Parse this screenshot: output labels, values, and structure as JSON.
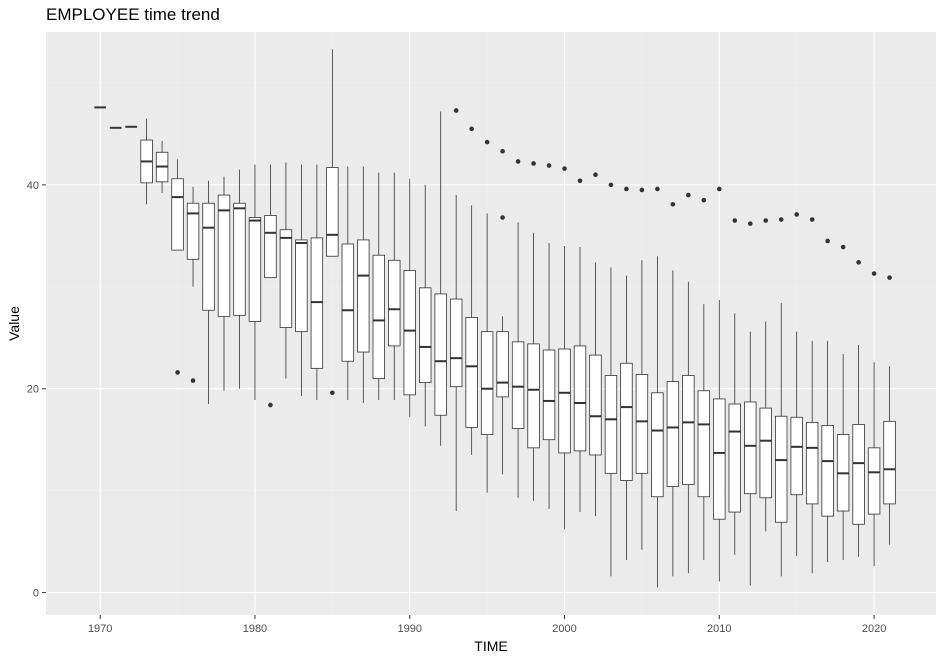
{
  "chart_data": {
    "type": "boxplot",
    "title": "EMPLOYEE time trend",
    "xlabel": "TIME",
    "ylabel": "Value",
    "xlim": [
      1966.5,
      2024.0
    ],
    "ylim": [
      -2.2,
      55.0
    ],
    "x_ticks": [
      1970,
      1980,
      1990,
      2000,
      2010,
      2020
    ],
    "y_ticks": [
      0,
      20,
      40
    ],
    "grid": true,
    "colors": {
      "panel": "#ebebeb",
      "grid_major": "#ffffff",
      "grid_minor": "#f2f2f2",
      "box_fill": "#ffffff",
      "box_line": "#333333"
    },
    "boxes": [
      {
        "x": 1970,
        "min": 47.6,
        "q1": 47.6,
        "median": 47.6,
        "q3": 47.6,
        "max": 47.6,
        "outliers": []
      },
      {
        "x": 1971,
        "min": 45.6,
        "q1": 45.6,
        "median": 45.6,
        "q3": 45.6,
        "max": 45.6,
        "outliers": []
      },
      {
        "x": 1972,
        "min": 45.7,
        "q1": 45.7,
        "median": 45.7,
        "q3": 45.7,
        "max": 45.7,
        "outliers": []
      },
      {
        "x": 1973,
        "min": 38.1,
        "q1": 40.2,
        "median": 42.3,
        "q3": 44.4,
        "max": 46.5,
        "outliers": []
      },
      {
        "x": 1974,
        "min": 39.2,
        "q1": 40.3,
        "median": 41.8,
        "q3": 43.2,
        "max": 44.3,
        "outliers": []
      },
      {
        "x": 1975,
        "min": 33.6,
        "q1": 33.6,
        "median": 38.8,
        "q3": 40.6,
        "max": 42.5,
        "outliers": [
          21.6
        ]
      },
      {
        "x": 1976,
        "min": 30.0,
        "q1": 32.7,
        "median": 37.2,
        "q3": 38.2,
        "max": 39.8,
        "outliers": [
          20.8
        ]
      },
      {
        "x": 1977,
        "min": 18.5,
        "q1": 27.7,
        "median": 35.8,
        "q3": 38.2,
        "max": 40.4,
        "outliers": []
      },
      {
        "x": 1978,
        "min": 19.8,
        "q1": 27.1,
        "median": 37.5,
        "q3": 39.0,
        "max": 40.8,
        "outliers": []
      },
      {
        "x": 1979,
        "min": 20.0,
        "q1": 27.2,
        "median": 37.7,
        "q3": 38.2,
        "max": 41.5,
        "outliers": []
      },
      {
        "x": 1980,
        "min": 18.9,
        "q1": 26.6,
        "median": 36.5,
        "q3": 36.8,
        "max": 42.0,
        "outliers": []
      },
      {
        "x": 1981,
        "min": 30.9,
        "q1": 30.9,
        "median": 35.3,
        "q3": 37.0,
        "max": 42.0,
        "outliers": [
          18.4
        ]
      },
      {
        "x": 1982,
        "min": 21.0,
        "q1": 26.0,
        "median": 34.8,
        "q3": 35.6,
        "max": 42.2,
        "outliers": []
      },
      {
        "x": 1983,
        "min": 19.3,
        "q1": 25.6,
        "median": 34.3,
        "q3": 34.6,
        "max": 42.0,
        "outliers": []
      },
      {
        "x": 1984,
        "min": 18.9,
        "q1": 22.0,
        "median": 28.5,
        "q3": 34.8,
        "max": 42.0,
        "outliers": []
      },
      {
        "x": 1985,
        "min": 33.0,
        "q1": 33.0,
        "median": 35.1,
        "q3": 41.7,
        "max": 53.3,
        "outliers": [
          19.6
        ]
      },
      {
        "x": 1986,
        "min": 18.9,
        "q1": 22.7,
        "median": 27.7,
        "q3": 34.2,
        "max": 41.8,
        "outliers": []
      },
      {
        "x": 1987,
        "min": 18.6,
        "q1": 23.6,
        "median": 31.1,
        "q3": 34.6,
        "max": 41.8,
        "outliers": []
      },
      {
        "x": 1988,
        "min": 18.9,
        "q1": 21.0,
        "median": 26.7,
        "q3": 33.1,
        "max": 41.2,
        "outliers": []
      },
      {
        "x": 1989,
        "min": 18.9,
        "q1": 24.2,
        "median": 27.8,
        "q3": 32.6,
        "max": 41.2,
        "outliers": []
      },
      {
        "x": 1990,
        "min": 17.2,
        "q1": 19.4,
        "median": 25.7,
        "q3": 31.6,
        "max": 40.6,
        "outliers": []
      },
      {
        "x": 1991,
        "min": 16.3,
        "q1": 20.6,
        "median": 24.1,
        "q3": 29.9,
        "max": 40.0,
        "outliers": []
      },
      {
        "x": 1992,
        "min": 14.4,
        "q1": 17.4,
        "median": 22.7,
        "q3": 29.3,
        "max": 47.2,
        "outliers": []
      },
      {
        "x": 1993,
        "min": 8.0,
        "q1": 20.2,
        "median": 23.0,
        "q3": 28.8,
        "max": 39.0,
        "outliers": [
          47.3
        ]
      },
      {
        "x": 1994,
        "min": 13.5,
        "q1": 16.2,
        "median": 22.2,
        "q3": 27.0,
        "max": 38.0,
        "outliers": [
          45.5
        ]
      },
      {
        "x": 1995,
        "min": 9.8,
        "q1": 15.5,
        "median": 20.0,
        "q3": 25.6,
        "max": 37.2,
        "outliers": [
          44.2
        ]
      },
      {
        "x": 1996,
        "min": 11.6,
        "q1": 19.2,
        "median": 20.6,
        "q3": 25.6,
        "max": 27.1,
        "outliers": [
          43.3,
          36.8
        ]
      },
      {
        "x": 1997,
        "min": 9.3,
        "q1": 16.1,
        "median": 20.2,
        "q3": 24.6,
        "max": 36.3,
        "outliers": [
          42.3
        ]
      },
      {
        "x": 1998,
        "min": 9.0,
        "q1": 14.2,
        "median": 19.9,
        "q3": 24.4,
        "max": 35.3,
        "outliers": [
          42.1
        ]
      },
      {
        "x": 1999,
        "min": 8.2,
        "q1": 15.0,
        "median": 18.8,
        "q3": 23.8,
        "max": 34.3,
        "outliers": [
          41.9
        ]
      },
      {
        "x": 2000,
        "min": 6.2,
        "q1": 13.7,
        "median": 19.6,
        "q3": 23.9,
        "max": 34.0,
        "outliers": [
          41.6
        ]
      },
      {
        "x": 2001,
        "min": 7.9,
        "q1": 13.9,
        "median": 18.6,
        "q3": 24.2,
        "max": 33.9,
        "outliers": [
          40.4
        ]
      },
      {
        "x": 2002,
        "min": 7.5,
        "q1": 13.5,
        "median": 17.3,
        "q3": 23.3,
        "max": 32.4,
        "outliers": [
          41.0
        ]
      },
      {
        "x": 2003,
        "min": 1.6,
        "q1": 11.7,
        "median": 17.0,
        "q3": 21.3,
        "max": 31.9,
        "outliers": [
          40.0
        ]
      },
      {
        "x": 2004,
        "min": 3.2,
        "q1": 11.0,
        "median": 18.2,
        "q3": 22.5,
        "max": 31.1,
        "outliers": [
          39.6
        ]
      },
      {
        "x": 2005,
        "min": 4.2,
        "q1": 11.7,
        "median": 16.8,
        "q3": 21.4,
        "max": 32.6,
        "outliers": [
          39.5
        ]
      },
      {
        "x": 2006,
        "min": 0.5,
        "q1": 9.4,
        "median": 15.9,
        "q3": 19.6,
        "max": 33.0,
        "outliers": [
          39.6
        ]
      },
      {
        "x": 2007,
        "min": 1.6,
        "q1": 10.4,
        "median": 16.2,
        "q3": 20.7,
        "max": 31.6,
        "outliers": [
          38.1
        ]
      },
      {
        "x": 2008,
        "min": 1.9,
        "q1": 10.6,
        "median": 16.7,
        "q3": 21.3,
        "max": 30.5,
        "outliers": [
          39.0
        ]
      },
      {
        "x": 2009,
        "min": 3.2,
        "q1": 9.4,
        "median": 16.5,
        "q3": 19.8,
        "max": 28.3,
        "outliers": [
          38.5
        ]
      },
      {
        "x": 2010,
        "min": 1.1,
        "q1": 7.2,
        "median": 13.7,
        "q3": 19.0,
        "max": 28.7,
        "outliers": [
          39.6
        ]
      },
      {
        "x": 2011,
        "min": 3.7,
        "q1": 7.9,
        "median": 15.8,
        "q3": 18.5,
        "max": 27.4,
        "outliers": [
          36.5
        ]
      },
      {
        "x": 2012,
        "min": 0.7,
        "q1": 9.7,
        "median": 14.4,
        "q3": 18.7,
        "max": 25.6,
        "outliers": [
          36.2
        ]
      },
      {
        "x": 2013,
        "min": 6.0,
        "q1": 9.3,
        "median": 14.9,
        "q3": 18.1,
        "max": 26.6,
        "outliers": [
          36.5
        ]
      },
      {
        "x": 2014,
        "min": 1.6,
        "q1": 6.9,
        "median": 13.0,
        "q3": 17.3,
        "max": 28.4,
        "outliers": [
          36.6
        ]
      },
      {
        "x": 2015,
        "min": 3.6,
        "q1": 9.6,
        "median": 14.3,
        "q3": 17.2,
        "max": 25.6,
        "outliers": [
          37.1
        ]
      },
      {
        "x": 2016,
        "min": 1.9,
        "q1": 8.7,
        "median": 14.2,
        "q3": 16.7,
        "max": 24.7,
        "outliers": [
          36.6
        ]
      },
      {
        "x": 2017,
        "min": 3.0,
        "q1": 7.5,
        "median": 12.9,
        "q3": 16.4,
        "max": 24.7,
        "outliers": [
          34.5
        ]
      },
      {
        "x": 2018,
        "min": 3.2,
        "q1": 8.0,
        "median": 11.7,
        "q3": 15.5,
        "max": 23.4,
        "outliers": [
          33.9
        ]
      },
      {
        "x": 2019,
        "min": 3.5,
        "q1": 6.7,
        "median": 12.7,
        "q3": 16.5,
        "max": 24.3,
        "outliers": [
          32.4
        ]
      },
      {
        "x": 2020,
        "min": 2.6,
        "q1": 7.7,
        "median": 11.8,
        "q3": 14.2,
        "max": 22.6,
        "outliers": [
          31.3
        ]
      },
      {
        "x": 2021,
        "min": 4.7,
        "q1": 8.7,
        "median": 12.1,
        "q3": 16.8,
        "max": 22.2,
        "outliers": [
          30.9
        ]
      }
    ]
  }
}
